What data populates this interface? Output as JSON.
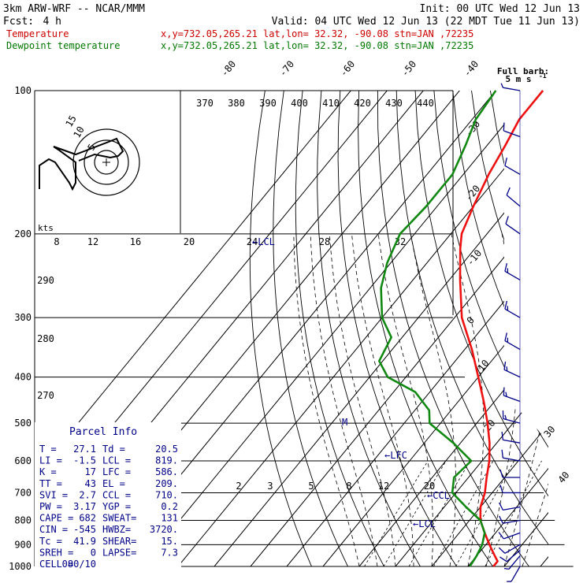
{
  "header": {
    "model": "3km ARW-WRF -- NCAR/MMM",
    "init": "Init: 00 UTC Wed 12 Jun 13",
    "fcst_label": "Fcst:",
    "fcst_value": "4 h",
    "valid": "Valid: 04 UTC Wed 12 Jun 13 (22 MDT Tue 11 Jun 13)"
  },
  "legend": [
    {
      "name": "Temperature",
      "loc": "x,y=732.05,265.21  lat,lon= 32.32, -90.08  stn=JAN ,72235",
      "color": "#cc0000"
    },
    {
      "name": "Dewpoint temperature",
      "loc": "x,y=732.05,265.21  lat,lon= 32.32, -90.08  stn=JAN ,72235",
      "color": "#007700"
    }
  ],
  "colors": {
    "temperature": "#ee1111",
    "dewpoint": "#118811",
    "barb": "#000088",
    "grid": "#000000",
    "annotation": "#000088"
  },
  "barb_key": {
    "line1": "Full barb:",
    "line2": "5 m s",
    "exp": "-1"
  },
  "hodograph": {
    "units": "kts",
    "ring_labels": [
      "5",
      "10",
      "15"
    ]
  },
  "parcel_info": {
    "title": "Parcel Info",
    "rows": [
      [
        "T   =",
        "27.1",
        "Td  =",
        "20.5"
      ],
      [
        "LI  =",
        "-1.5",
        "LCL =",
        "819."
      ],
      [
        "K   =",
        "17",
        "LFC =",
        "586."
      ],
      [
        "TT  =",
        "43",
        "EL  =",
        "209."
      ],
      [
        "SVI =",
        "2.7",
        "CCL =",
        "710."
      ],
      [
        "PW  =",
        "3.17",
        "YGP =",
        "0.2"
      ],
      [
        "CAPE =",
        "682",
        "SWEAT=",
        "131"
      ],
      [
        "CIN  =",
        "-545",
        "HWBZ=",
        "3720."
      ],
      [
        "Tc   =",
        "41.9",
        "SHEAR=",
        "15."
      ],
      [
        "SREH =",
        "0",
        "LAPSE=",
        "7.3"
      ],
      [
        "CELL =",
        "080/10",
        "",
        ""
      ]
    ]
  },
  "annotations": [
    "LCL",
    "LFC",
    "CCL",
    "LCL",
    "M"
  ],
  "chart_data": {
    "type": "line",
    "title": "",
    "xlabel": "",
    "ylabel": "",
    "pressure_levels": [
      100,
      200,
      300,
      400,
      500,
      600,
      700,
      800,
      900,
      1000
    ],
    "isotherm_labels": [
      "-80",
      "-70",
      "-60",
      "-50",
      "-40",
      "-30",
      "-20",
      "-10",
      "0",
      "10",
      "20",
      "30",
      "40"
    ],
    "theta_labels_top": [
      "370",
      "380",
      "390",
      "400",
      "410",
      "420",
      "430",
      "440"
    ],
    "theta_labels_left": [
      "290",
      "280",
      "270"
    ],
    "hodo_speed_labels": [
      "8",
      "12",
      "16",
      "20",
      "24",
      "28",
      "32"
    ],
    "mixing_ratio_labels": [
      "2",
      "3",
      "5",
      "8",
      "12",
      "20"
    ],
    "series": [
      {
        "name": "Temperature",
        "points": [
          [
            100,
            -67
          ],
          [
            115,
            -67
          ],
          [
            130,
            -65
          ],
          [
            150,
            -63
          ],
          [
            175,
            -60
          ],
          [
            200,
            -57
          ],
          [
            215,
            -54
          ],
          [
            250,
            -47
          ],
          [
            300,
            -38
          ],
          [
            350,
            -28
          ],
          [
            400,
            -20
          ],
          [
            450,
            -13
          ],
          [
            500,
            -7
          ],
          [
            550,
            -2
          ],
          [
            600,
            2
          ],
          [
            650,
            5
          ],
          [
            700,
            8
          ],
          [
            750,
            10
          ],
          [
            800,
            13
          ],
          [
            850,
            17
          ],
          [
            900,
            21
          ],
          [
            950,
            25
          ],
          [
            975,
            27
          ],
          [
            1000,
            27
          ]
        ]
      },
      {
        "name": "Dewpoint temperature",
        "points": [
          [
            100,
            -80
          ],
          [
            115,
            -79
          ],
          [
            130,
            -76
          ],
          [
            150,
            -73
          ],
          [
            175,
            -73
          ],
          [
            200,
            -74
          ],
          [
            230,
            -71
          ],
          [
            260,
            -67
          ],
          [
            300,
            -60
          ],
          [
            330,
            -53
          ],
          [
            370,
            -51
          ],
          [
            400,
            -45
          ],
          [
            430,
            -34
          ],
          [
            470,
            -26
          ],
          [
            500,
            -23
          ],
          [
            550,
            -12
          ],
          [
            600,
            -3
          ],
          [
            650,
            -4
          ],
          [
            700,
            -1
          ],
          [
            750,
            6
          ],
          [
            800,
            13
          ],
          [
            850,
            17
          ],
          [
            900,
            19
          ],
          [
            950,
            20
          ],
          [
            1000,
            20.5
          ]
        ]
      }
    ],
    "wind": [
      {
        "p": 1000,
        "dir": 210,
        "spd": 5
      },
      {
        "p": 950,
        "dir": 220,
        "spd": 7
      },
      {
        "p": 925,
        "dir": 230,
        "spd": 8
      },
      {
        "p": 900,
        "dir": 240,
        "spd": 8
      },
      {
        "p": 850,
        "dir": 250,
        "spd": 10
      },
      {
        "p": 800,
        "dir": 260,
        "spd": 10
      },
      {
        "p": 750,
        "dir": 260,
        "spd": 12
      },
      {
        "p": 700,
        "dir": 270,
        "spd": 12
      },
      {
        "p": 650,
        "dir": 270,
        "spd": 12
      },
      {
        "p": 600,
        "dir": 280,
        "spd": 12
      },
      {
        "p": 550,
        "dir": 280,
        "spd": 12
      },
      {
        "p": 500,
        "dir": 285,
        "spd": 15
      },
      {
        "p": 450,
        "dir": 290,
        "spd": 15
      },
      {
        "p": 400,
        "dir": 295,
        "spd": 17
      },
      {
        "p": 350,
        "dir": 300,
        "spd": 15
      },
      {
        "p": 300,
        "dir": 300,
        "spd": 15
      },
      {
        "p": 250,
        "dir": 300,
        "spd": 15
      },
      {
        "p": 200,
        "dir": 305,
        "spd": 12
      },
      {
        "p": 175,
        "dir": 310,
        "spd": 10
      },
      {
        "p": 150,
        "dir": 300,
        "spd": 10
      },
      {
        "p": 125,
        "dir": 290,
        "spd": 10
      },
      {
        "p": 100,
        "dir": 280,
        "spd": 5
      }
    ]
  }
}
